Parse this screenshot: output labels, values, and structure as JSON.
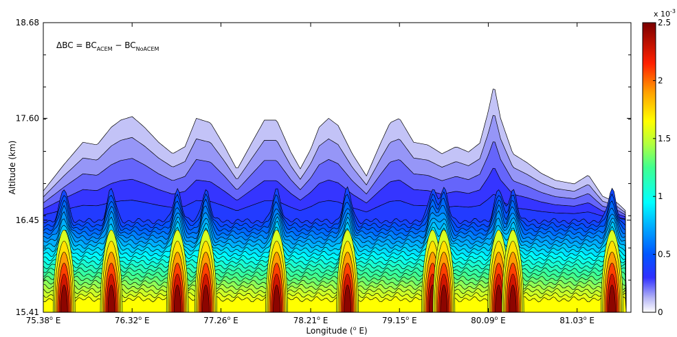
{
  "chart_data": {
    "type": "contour",
    "annotation": {
      "prefix": "ΔBC = BC",
      "sub1": "ACEM",
      "mid": " − BC",
      "sub2": "NoACEM"
    },
    "xlabel": {
      "text": "Longitude (",
      "sup": "o",
      "suffix": " E)"
    },
    "ylabel": "Altitude (km)",
    "xlim": [
      75.38,
      81.6
    ],
    "ylim": [
      15.41,
      18.68
    ],
    "x_ticks": [
      {
        "value": 75.38,
        "label": "75.38",
        "sup": "o",
        "suffix": " E"
      },
      {
        "value": 76.32,
        "label": "76.32",
        "sup": "o",
        "suffix": " E"
      },
      {
        "value": 77.26,
        "label": "77.26",
        "sup": "o",
        "suffix": " E"
      },
      {
        "value": 78.21,
        "label": "78.21",
        "sup": "o",
        "suffix": " E"
      },
      {
        "value": 79.15,
        "label": "79.15",
        "sup": "o",
        "suffix": " E"
      },
      {
        "value": 80.09,
        "label": "80.09",
        "sup": "o",
        "suffix": " E"
      },
      {
        "value": 81.03,
        "label": "81.03",
        "sup": "o",
        "suffix": " E"
      }
    ],
    "y_ticks": [
      {
        "value": 15.41,
        "label": "15.41"
      },
      {
        "value": 16.45,
        "label": "16.45"
      },
      {
        "value": 17.6,
        "label": "17.60"
      },
      {
        "value": 18.68,
        "label": "18.68"
      }
    ],
    "colorbar": {
      "multiplier": "x 10",
      "exponent": "-3",
      "range": [
        0,
        2.5
      ],
      "ticks": [
        {
          "value": 0,
          "label": "0"
        },
        {
          "value": 0.5,
          "label": "0.5"
        },
        {
          "value": 1,
          "label": "1"
        },
        {
          "value": 1.5,
          "label": "1.5"
        },
        {
          "value": 2,
          "label": "2"
        },
        {
          "value": 2.5,
          "label": "2.5"
        }
      ],
      "colormap": "jet-like (white → blue → cyan → green → yellow → red → dark red)"
    },
    "n_levels": 25,
    "top_envelope_km": [
      [
        75.38,
        16.78
      ],
      [
        75.6,
        17.08
      ],
      [
        75.8,
        17.33
      ],
      [
        75.95,
        17.3
      ],
      [
        76.1,
        17.5
      ],
      [
        76.2,
        17.58
      ],
      [
        76.32,
        17.62
      ],
      [
        76.45,
        17.5
      ],
      [
        76.6,
        17.33
      ],
      [
        76.75,
        17.2
      ],
      [
        76.88,
        17.28
      ],
      [
        77.0,
        17.6
      ],
      [
        77.15,
        17.55
      ],
      [
        77.3,
        17.28
      ],
      [
        77.43,
        17.02
      ],
      [
        77.6,
        17.35
      ],
      [
        77.72,
        17.58
      ],
      [
        77.85,
        17.58
      ],
      [
        78.0,
        17.22
      ],
      [
        78.1,
        17.03
      ],
      [
        78.21,
        17.25
      ],
      [
        78.3,
        17.5
      ],
      [
        78.4,
        17.6
      ],
      [
        78.5,
        17.52
      ],
      [
        78.65,
        17.2
      ],
      [
        78.8,
        16.95
      ],
      [
        78.95,
        17.32
      ],
      [
        79.05,
        17.55
      ],
      [
        79.15,
        17.6
      ],
      [
        79.3,
        17.33
      ],
      [
        79.45,
        17.3
      ],
      [
        79.6,
        17.2
      ],
      [
        79.75,
        17.28
      ],
      [
        79.88,
        17.22
      ],
      [
        80.0,
        17.32
      ],
      [
        80.09,
        17.68
      ],
      [
        80.15,
        17.98
      ],
      [
        80.22,
        17.6
      ],
      [
        80.35,
        17.2
      ],
      [
        80.5,
        17.1
      ],
      [
        80.65,
        16.98
      ],
      [
        80.8,
        16.9
      ],
      [
        81.0,
        16.86
      ],
      [
        81.15,
        16.96
      ],
      [
        81.3,
        16.72
      ],
      [
        81.45,
        16.65
      ],
      [
        81.55,
        16.55
      ]
    ],
    "hotspots_longitude": [
      75.6,
      76.1,
      76.8,
      77.1,
      77.85,
      78.6,
      79.5,
      79.62,
      80.2,
      80.35,
      81.4
    ]
  }
}
